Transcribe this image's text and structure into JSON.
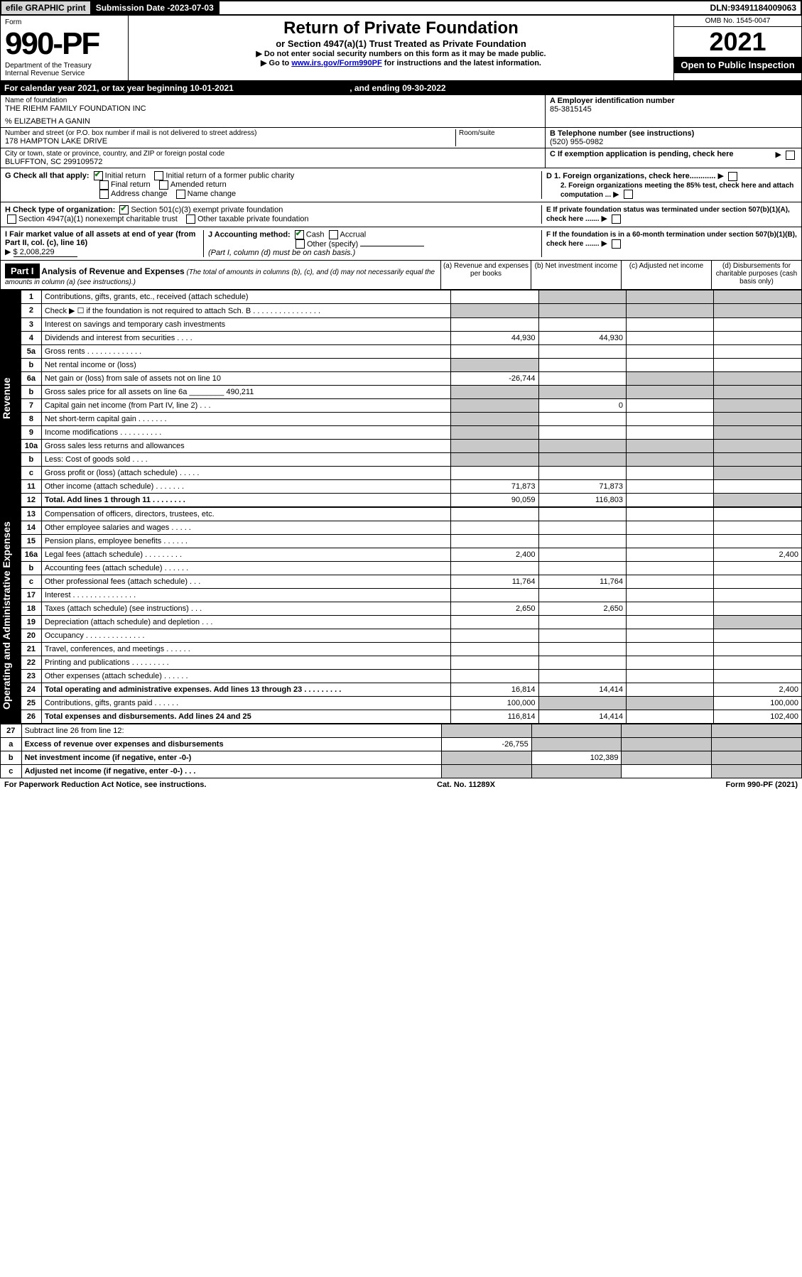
{
  "topbar": {
    "efile": "efile GRAPHIC print",
    "submission_label": "Submission Date - ",
    "submission_date": "2023-07-03",
    "dln_label": "DLN: ",
    "dln": "93491184009063"
  },
  "header": {
    "form_word": "Form",
    "form_no": "990-PF",
    "dept": "Department of the Treasury",
    "irs": "Internal Revenue Service",
    "title": "Return of Private Foundation",
    "subtitle": "or Section 4947(a)(1) Trust Treated as Private Foundation",
    "note1": "Do not enter social security numbers on this form as it may be made public.",
    "note2_pre": "Go to ",
    "note2_link": "www.irs.gov/Form990PF",
    "note2_post": " for instructions and the latest information.",
    "omb": "OMB No. 1545-0047",
    "year": "2021",
    "open": "Open to Public Inspection"
  },
  "calendar": {
    "line": "For calendar year 2021, or tax year beginning ",
    "begin": "10-01-2021",
    "mid": " , and ending ",
    "end": "09-30-2022"
  },
  "identity": {
    "name_label": "Name of foundation",
    "name": "THE RIEHM FAMILY FOUNDATION INC",
    "care_of": "% ELIZABETH A GANIN",
    "addr_label": "Number and street (or P.O. box number if mail is not delivered to street address)",
    "addr": "178 HAMPTON LAKE DRIVE",
    "room_label": "Room/suite",
    "city_label": "City or town, state or province, country, and ZIP or foreign postal code",
    "city": "BLUFFTON, SC  299109572",
    "a_label": "A Employer identification number",
    "ein": "85-3815145",
    "b_label": "B Telephone number (see instructions)",
    "phone": "(520) 955-0982",
    "c_label": "C If exemption application is pending, check here"
  },
  "g": {
    "label": "G Check all that apply:",
    "initial": "Initial return",
    "initial_former": "Initial return of a former public charity",
    "final": "Final return",
    "amended": "Amended return",
    "addr_change": "Address change",
    "name_change": "Name change"
  },
  "d": {
    "d1": "D 1. Foreign organizations, check here............",
    "d2": "2. Foreign organizations meeting the 85% test, check here and attach computation ..."
  },
  "h": {
    "label": "H Check type of organization:",
    "opt1": "Section 501(c)(3) exempt private foundation",
    "opt2": "Section 4947(a)(1) nonexempt charitable trust",
    "opt3": "Other taxable private foundation"
  },
  "e": {
    "label": "E  If private foundation status was terminated under section 507(b)(1)(A), check here ......."
  },
  "i": {
    "label": "I Fair market value of all assets at end of year (from Part II, col. (c), line 16)",
    "value": "$  2,008,229"
  },
  "j": {
    "label": "J Accounting method:",
    "cash": "Cash",
    "accrual": "Accrual",
    "other": "Other (specify)",
    "note": "(Part I, column (d) must be on cash basis.)"
  },
  "f": {
    "label": "F  If the foundation is in a 60-month termination under section 507(b)(1)(B), check here ......."
  },
  "part1": {
    "tag": "Part I",
    "title": "Analysis of Revenue and Expenses",
    "desc": "(The total of amounts in columns (b), (c), and (d) may not necessarily equal the amounts in column (a) (see instructions).)",
    "ca": "(a) Revenue and expenses per books",
    "cb": "(b) Net investment income",
    "cc": "(c) Adjusted net income",
    "cd": "(d) Disbursements for charitable purposes (cash basis only)"
  },
  "side_labels": {
    "rev": "Revenue",
    "exp": "Operating and Administrative Expenses"
  },
  "rows": {
    "r1": {
      "n": "1",
      "l": "Contributions, gifts, grants, etc., received (attach schedule)"
    },
    "r2": {
      "n": "2",
      "l": "Check ▶ ☐ if the foundation is not required to attach Sch. B   . . . . . . . . . . . . . . . ."
    },
    "r3": {
      "n": "3",
      "l": "Interest on savings and temporary cash investments"
    },
    "r4": {
      "n": "4",
      "l": "Dividends and interest from securities   .  .  .  .",
      "a": "44,930",
      "b": "44,930"
    },
    "r5a": {
      "n": "5a",
      "l": "Gross rents   . . . . . . . . . . . . ."
    },
    "r5b": {
      "n": "b",
      "l": "Net rental income or (loss)"
    },
    "r6a": {
      "n": "6a",
      "l": "Net gain or (loss) from sale of assets not on line 10",
      "a": "-26,744"
    },
    "r6b": {
      "n": "b",
      "l": "Gross sales price for all assets on line 6a ________ 490,211"
    },
    "r7": {
      "n": "7",
      "l": "Capital gain net income (from Part IV, line 2)   .  .  .",
      "b": "0"
    },
    "r8": {
      "n": "8",
      "l": "Net short-term capital gain   . . . . . . ."
    },
    "r9": {
      "n": "9",
      "l": "Income modifications   . . . . . . . . . ."
    },
    "r10a": {
      "n": "10a",
      "l": "Gross sales less returns and allowances"
    },
    "r10b": {
      "n": "b",
      "l": "Less: Cost of goods sold   .  .  .  ."
    },
    "r10c": {
      "n": "c",
      "l": "Gross profit or (loss) (attach schedule)   .  .  .  .  ."
    },
    "r11": {
      "n": "11",
      "l": "Other income (attach schedule)   .  .  .  .  .  .  .",
      "a": "71,873",
      "b": "71,873"
    },
    "r12": {
      "n": "12",
      "l": "Total. Add lines 1 through 11   .  .  .  .  .  .  .  .",
      "a": "90,059",
      "b": "116,803",
      "bold": true
    },
    "r13": {
      "n": "13",
      "l": "Compensation of officers, directors, trustees, etc."
    },
    "r14": {
      "n": "14",
      "l": "Other employee salaries and wages   .  .  .  .  ."
    },
    "r15": {
      "n": "15",
      "l": "Pension plans, employee benefits   .  .  .  .  .  ."
    },
    "r16a": {
      "n": "16a",
      "l": "Legal fees (attach schedule)  . . . . . . . . .",
      "a": "2,400",
      "d": "2,400"
    },
    "r16b": {
      "n": "b",
      "l": "Accounting fees (attach schedule)  .  .  .  .  .  ."
    },
    "r16c": {
      "n": "c",
      "l": "Other professional fees (attach schedule)   .  .  .",
      "a": "11,764",
      "b": "11,764"
    },
    "r17": {
      "n": "17",
      "l": "Interest  . . . . . . . . . . . . . . ."
    },
    "r18": {
      "n": "18",
      "l": "Taxes (attach schedule) (see instructions)   .  .  .",
      "a": "2,650",
      "b": "2,650"
    },
    "r19": {
      "n": "19",
      "l": "Depreciation (attach schedule) and depletion   .  .  ."
    },
    "r20": {
      "n": "20",
      "l": "Occupancy  . . . . . . . . . . . . . ."
    },
    "r21": {
      "n": "21",
      "l": "Travel, conferences, and meetings  .  .  .  .  .  ."
    },
    "r22": {
      "n": "22",
      "l": "Printing and publications  . . . . . . . . ."
    },
    "r23": {
      "n": "23",
      "l": "Other expenses (attach schedule)  .  .  .  .  .  ."
    },
    "r24": {
      "n": "24",
      "l": "Total operating and administrative expenses. Add lines 13 through 23   .  .  .  .  .  .  .  .  .",
      "a": "16,814",
      "b": "14,414",
      "d": "2,400",
      "bold": true
    },
    "r25": {
      "n": "25",
      "l": "Contributions, gifts, grants paid   .  .  .  .  .  .",
      "a": "100,000",
      "d": "100,000"
    },
    "r26": {
      "n": "26",
      "l": "Total expenses and disbursements. Add lines 24 and 25",
      "a": "116,814",
      "b": "14,414",
      "d": "102,400",
      "bold": true
    },
    "r27": {
      "n": "27",
      "l": "Subtract line 26 from line 12:"
    },
    "r27a": {
      "n": "a",
      "l": "Excess of revenue over expenses and disbursements",
      "a": "-26,755",
      "bold": true
    },
    "r27b": {
      "n": "b",
      "l": "Net investment income (if negative, enter -0-)",
      "b": "102,389",
      "bold": true
    },
    "r27c": {
      "n": "c",
      "l": "Adjusted net income (if negative, enter -0-)   .  .  .",
      "bold": true
    }
  },
  "footer": {
    "left": "For Paperwork Reduction Act Notice, see instructions.",
    "mid": "Cat. No. 11289X",
    "right": "Form 990-PF (2021)"
  },
  "colors": {
    "shade": "#c8c8c8",
    "link": "#0000cc",
    "check": "#1a7a1a"
  }
}
